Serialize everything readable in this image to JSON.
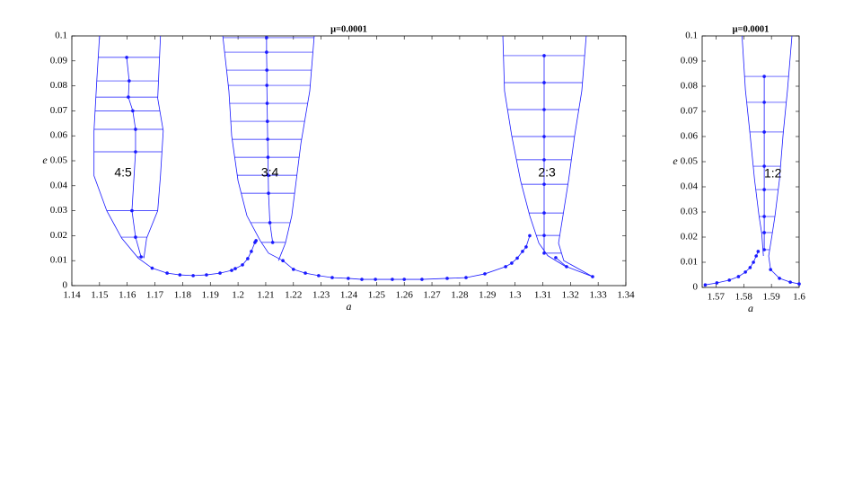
{
  "chart_data": [
    {
      "type": "line",
      "title": "μ=0.0001",
      "x_label": "a",
      "y_label": "e",
      "color": "#1a1aff",
      "xlim": [
        1.14,
        1.34
      ],
      "ylim": [
        0,
        0.1
      ],
      "xticks": [
        1.14,
        1.15,
        1.16,
        1.17,
        1.18,
        1.19,
        1.2,
        1.21,
        1.22,
        1.23,
        1.24,
        1.25,
        1.26,
        1.27,
        1.28,
        1.29,
        1.3,
        1.31,
        1.32,
        1.33,
        1.34
      ],
      "yticks": [
        0,
        0.01,
        0.02,
        0.03,
        0.04,
        0.05,
        0.06,
        0.07,
        0.08,
        0.09,
        0.1
      ],
      "resonances": [
        {
          "left": {
            "x": [
              1.15,
              1.149,
              1.148,
              1.148,
              1.1526,
              1.158,
              1.164,
              1.169
            ],
            "values": [
              0.1,
              0.082,
              0.062,
              0.044,
              0.03,
              0.019,
              0.011,
              0.007
            ]
          },
          "right": {
            "x": [
              1.172,
              1.171,
              1.173,
              1.172,
              1.171,
              1.167,
              1.166
            ],
            "values": [
              0.1,
              0.075,
              0.062,
              0.044,
              0.03,
              0.019,
              0.011
            ]
          },
          "center": {
            "x": [
              1.1598,
              1.1607,
              1.1604,
              1.162,
              1.163,
              1.163,
              1.1617,
              1.163,
              1.165
            ],
            "values": [
              0.0914,
              0.082,
              0.0755,
              0.07,
              0.0626,
              0.0536,
              0.03,
              0.0194,
              0.0115
            ]
          }
        },
        {
          "left": {
            "x": [
              1.1945,
              1.1967,
              1.1977,
              1.2,
              1.2032,
              1.208,
              1.211,
              1.2162
            ],
            "values": [
              0.1,
              0.078,
              0.06,
              0.042,
              0.028,
              0.018,
              0.013,
              0.01
            ]
          },
          "right": {
            "x": [
              1.2275,
              1.2259,
              1.2227,
              1.221,
              1.2194,
              1.2171,
              1.2146
            ],
            "values": [
              0.1,
              0.078,
              0.057,
              0.042,
              0.028,
              0.017,
              0.01
            ]
          },
          "center": {
            "x": [
              1.2103,
              1.2103,
              1.2104,
              1.2104,
              1.2105,
              1.2106,
              1.2107,
              1.2108,
              1.2109,
              1.211,
              1.2115,
              1.2125
            ],
            "values": [
              0.0993,
              0.0935,
              0.0863,
              0.0802,
              0.073,
              0.0658,
              0.0586,
              0.0514,
              0.0442,
              0.037,
              0.0252,
              0.0173
            ]
          }
        },
        {
          "left": {
            "x": [
              1.2956,
              1.2962,
              1.2988,
              1.302,
              1.3053,
              1.3086,
              1.3118,
              1.3183
            ],
            "values": [
              0.1,
              0.078,
              0.06,
              0.042,
              0.028,
              0.017,
              0.012,
              0.0076
            ]
          },
          "right": {
            "x": [
              1.3257,
              1.3241,
              1.3215,
              1.3193,
              1.3173,
              1.3157,
              1.3176,
              1.328
            ],
            "values": [
              0.1,
              0.078,
              0.06,
              0.042,
              0.028,
              0.017,
              0.01,
              0.0036
            ]
          },
          "center": {
            "x": [
              1.3105,
              1.3105,
              1.3105,
              1.3105,
              1.3105,
              1.3105,
              1.3105,
              1.3105,
              1.3105
            ],
            "values": [
              0.0921,
              0.0813,
              0.0705,
              0.0597,
              0.0504,
              0.0406,
              0.0291,
              0.0201,
              0.013
            ]
          }
        }
      ],
      "chains": [
        {
          "x": [
            1.169,
            1.1744,
            1.179,
            1.1838,
            1.1886,
            1.1935,
            1.1977,
            1.199,
            1.2016,
            1.2035,
            1.2048,
            1.2061,
            1.2065
          ],
          "values": [
            0.007,
            0.005,
            0.0043,
            0.004,
            0.0043,
            0.005,
            0.0061,
            0.0068,
            0.0083,
            0.0108,
            0.0137,
            0.0173,
            0.018
          ]
        },
        {
          "x": [
            1.2162,
            1.22,
            1.2243,
            1.2291,
            1.234,
            1.2398,
            1.2447,
            1.2496,
            1.2557,
            1.26,
            1.2664,
            1.2755,
            1.2823,
            1.2891,
            1.2966,
            1.2988,
            1.3008,
            1.3027,
            1.304,
            1.3053
          ],
          "values": [
            0.01,
            0.0065,
            0.005,
            0.004,
            0.0032,
            0.0029,
            0.0025,
            0.0025,
            0.0025,
            0.0025,
            0.0025,
            0.0029,
            0.0032,
            0.0047,
            0.0076,
            0.009,
            0.011,
            0.0137,
            0.0155,
            0.02
          ]
        },
        {
          "x": [
            1.3147,
            1.3186,
            1.328
          ],
          "values": [
            0.0112,
            0.0076,
            0.0036
          ]
        }
      ],
      "annotations": [
        {
          "text": "4:5",
          "x": 1.1585,
          "y": 0.045
        },
        {
          "text": "3:4",
          "x": 1.2115,
          "y": 0.045
        },
        {
          "text": "2:3",
          "x": 1.3115,
          "y": 0.045
        }
      ]
    },
    {
      "type": "line",
      "title": "μ=0.0001",
      "x_label": "a",
      "y_label": "e",
      "color": "#1a1aff",
      "xlim": [
        1.565,
        1.6
      ],
      "ylim": [
        0,
        0.1
      ],
      "xticks": [
        1.57,
        1.58,
        1.59,
        1.6
      ],
      "yticks": [
        0,
        0.01,
        0.02,
        0.03,
        0.04,
        0.05,
        0.06,
        0.07,
        0.08,
        0.09,
        0.1
      ],
      "resonances": [
        {
          "left": {
            "x": [
              1.5794,
              1.5806,
              1.5823,
              1.5839,
              1.5855,
              1.5865,
              1.5871
            ],
            "values": [
              0.1,
              0.0786,
              0.0607,
              0.0429,
              0.0286,
              0.0214,
              0.0125
            ]
          },
          "right": {
            "x": [
              1.5974,
              1.5958,
              1.5942,
              1.5929,
              1.5913,
              1.5903,
              1.589,
              1.5897
            ],
            "values": [
              0.1,
              0.0786,
              0.0607,
              0.0429,
              0.0286,
              0.0214,
              0.0125,
              0.0071
            ]
          },
          "center": {
            "x": [
              1.5874,
              1.5874,
              1.5874,
              1.5874,
              1.5874,
              1.5874,
              1.5874,
              1.5874
            ],
            "values": [
              0.0839,
              0.0736,
              0.0618,
              0.0482,
              0.0389,
              0.0282,
              0.0218,
              0.015
            ]
          }
        }
      ],
      "chains": [
        {
          "x": [
            1.5661,
            1.5703,
            1.5748,
            1.5781,
            1.5806,
            1.5823,
            1.5835,
            1.5845,
            1.5852
          ],
          "values": [
            0.001,
            0.0018,
            0.0029,
            0.0043,
            0.0061,
            0.0079,
            0.01,
            0.0125,
            0.0143
          ]
        },
        {
          "x": [
            1.5897,
            1.5929,
            1.5968,
            1.6
          ],
          "values": [
            0.0071,
            0.0036,
            0.0021,
            0.0014
          ]
        }
      ],
      "annotations": [
        {
          "text": "1:2",
          "x": 1.5905,
          "y": 0.045
        }
      ]
    }
  ]
}
